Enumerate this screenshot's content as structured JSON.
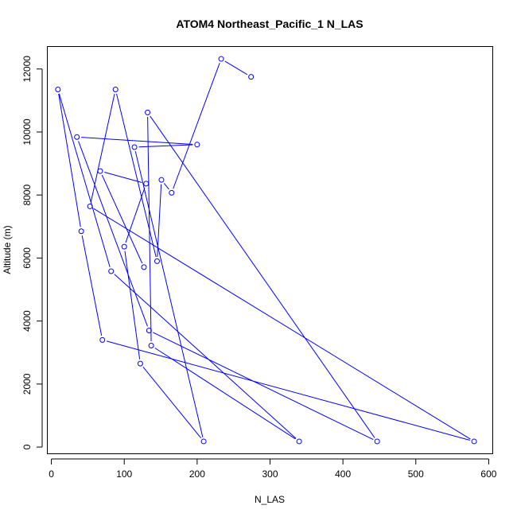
{
  "chart_data": {
    "type": "line",
    "title": "ATOM4 Northeast_Pacific_1 N_LAS",
    "xlabel": "N_LAS",
    "ylabel": "Altitude (m)",
    "xlim": [
      -5,
      605
    ],
    "ylim": [
      -200,
      12700
    ],
    "x_ticks": [
      0,
      100,
      200,
      300,
      400,
      500,
      600
    ],
    "y_ticks": [
      0,
      2000,
      4000,
      6000,
      8000,
      10000,
      12000
    ],
    "grid": false,
    "legend": "none",
    "series": [
      {
        "marker": "open-circle",
        "color": "#0000ff",
        "points": [
          {
            "x": 274,
            "y": 11750
          },
          {
            "x": 233,
            "y": 12320
          },
          {
            "x": 165,
            "y": 8070
          },
          {
            "x": 151,
            "y": 8480
          },
          {
            "x": 145,
            "y": 5900
          },
          {
            "x": 88,
            "y": 11350
          },
          {
            "x": 53,
            "y": 7640
          },
          {
            "x": 580,
            "y": 180
          },
          {
            "x": 70,
            "y": 3400
          },
          {
            "x": 41,
            "y": 6850
          },
          {
            "x": 9,
            "y": 11350
          },
          {
            "x": 82,
            "y": 5580
          },
          {
            "x": 340,
            "y": 180
          },
          {
            "x": 137,
            "y": 3220
          },
          {
            "x": 132,
            "y": 10620
          },
          {
            "x": 447,
            "y": 180
          },
          {
            "x": 134,
            "y": 3700
          },
          {
            "x": 35,
            "y": 9840
          },
          {
            "x": 200,
            "y": 9600
          },
          {
            "x": 114,
            "y": 9520
          },
          {
            "x": 209,
            "y": 180
          },
          {
            "x": 122,
            "y": 2650
          },
          {
            "x": 100,
            "y": 6360
          },
          {
            "x": 130,
            "y": 8360
          },
          {
            "x": 67,
            "y": 8760
          },
          {
            "x": 127,
            "y": 5710
          }
        ]
      }
    ]
  }
}
